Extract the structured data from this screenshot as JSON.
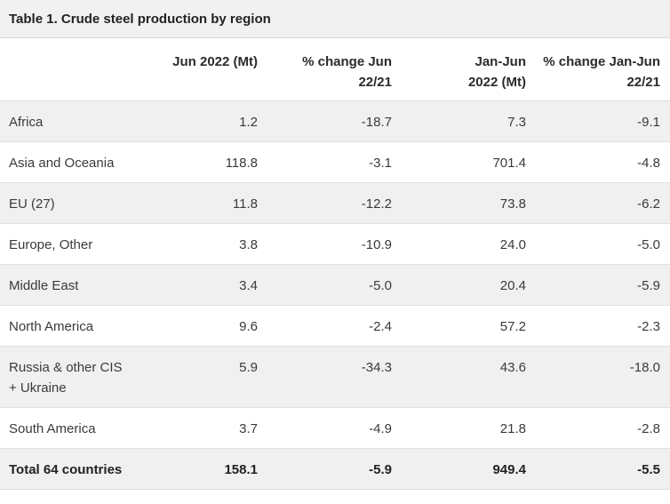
{
  "chart_data": {
    "type": "table",
    "title": "Table 1. Crude steel production by region",
    "columns": [
      "",
      "Jun 2022 (Mt)",
      "% change Jun 22/21",
      "Jan-Jun 2022 (Mt)",
      "% change Jan-Jun 22/21"
    ],
    "headers_display": {
      "region": "",
      "jun_2022": "Jun 2022 (Mt)",
      "pct_change_jun": "% change Jun\n22/21",
      "jan_jun_2022": "Jan-Jun\n2022 (Mt)",
      "pct_change_jan_jun": "% change Jan-Jun\n22/21"
    },
    "rows": [
      {
        "region": "Africa",
        "values": [
          "1.2",
          "-18.7",
          "7.3",
          "-9.1"
        ]
      },
      {
        "region": "Asia and Oceania",
        "values": [
          "118.8",
          "-3.1",
          "701.4",
          "-4.8"
        ]
      },
      {
        "region": "EU (27)",
        "values": [
          "11.8",
          "-12.2",
          "73.8",
          "-6.2"
        ]
      },
      {
        "region": "Europe, Other",
        "values": [
          "3.8",
          "-10.9",
          "24.0",
          "-5.0"
        ]
      },
      {
        "region": "Middle East",
        "values": [
          "3.4",
          "-5.0",
          "20.4",
          "-5.9"
        ]
      },
      {
        "region": "North America",
        "values": [
          "9.6",
          "-2.4",
          "57.2",
          "-2.3"
        ]
      },
      {
        "region": "Russia & other CIS\n+ Ukraine",
        "values": [
          "5.9",
          "-34.3",
          "43.6",
          "-18.0"
        ]
      },
      {
        "region": "South America",
        "values": [
          "3.7",
          "-4.9",
          "21.8",
          "-2.8"
        ]
      }
    ],
    "total": {
      "region": "Total 64 countries",
      "values": [
        "158.1",
        "-5.9",
        "949.4",
        "-5.5"
      ]
    },
    "layout_hints": {
      "numeric_columns_alignment": "right",
      "striped_rows": true,
      "grid": "horizontal-only"
    },
    "colors": {
      "title_bar_bg": "#f1f1f2",
      "stripe_bg": "#f0f0f1",
      "title_divider": "#d6d6d6",
      "row_border": "#e0e0e0",
      "text": "#3a3a3a",
      "bold_text": "#222222"
    }
  }
}
